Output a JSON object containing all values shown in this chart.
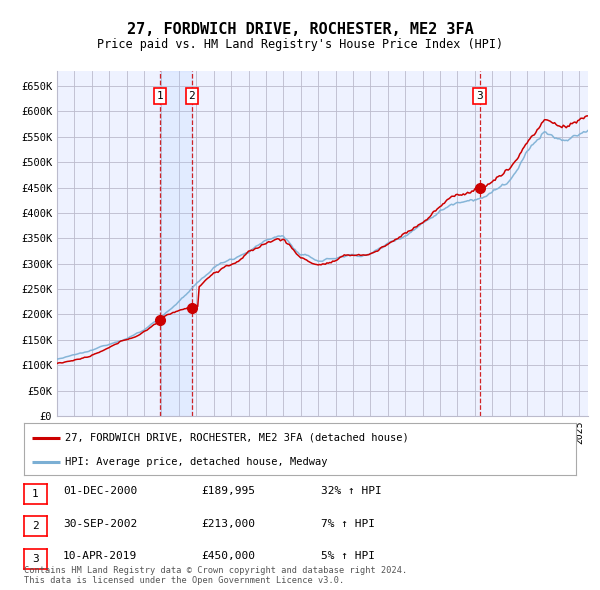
{
  "title": "27, FORDWICH DRIVE, ROCHESTER, ME2 3FA",
  "subtitle": "Price paid vs. HM Land Registry's House Price Index (HPI)",
  "ylabel_ticks": [
    "£0",
    "£50K",
    "£100K",
    "£150K",
    "£200K",
    "£250K",
    "£300K",
    "£350K",
    "£400K",
    "£450K",
    "£500K",
    "£550K",
    "£600K",
    "£650K"
  ],
  "ytick_values": [
    0,
    50000,
    100000,
    150000,
    200000,
    250000,
    300000,
    350000,
    400000,
    450000,
    500000,
    550000,
    600000,
    650000
  ],
  "ylim": [
    0,
    680000
  ],
  "red_line_color": "#cc0000",
  "blue_line_color": "#7bafd4",
  "plot_bg_color": "#eef2ff",
  "grid_color": "#bbbbcc",
  "purchase_times": [
    2000.917,
    2002.75,
    2019.274
  ],
  "purchase_prices": [
    189995,
    213000,
    450000
  ],
  "purchase_labels": [
    "1",
    "2",
    "3"
  ],
  "legend_label_red": "27, FORDWICH DRIVE, ROCHESTER, ME2 3FA (detached house)",
  "legend_label_blue": "HPI: Average price, detached house, Medway",
  "footnote": "Contains HM Land Registry data © Crown copyright and database right 2024.\nThis data is licensed under the Open Government Licence v3.0.",
  "table_rows": [
    [
      "1",
      "01-DEC-2000",
      "£189,995",
      "32% ↑ HPI"
    ],
    [
      "2",
      "30-SEP-2002",
      "£213,000",
      "7% ↑ HPI"
    ],
    [
      "3",
      "10-APR-2019",
      "£450,000",
      "5% ↑ HPI"
    ]
  ],
  "xstart": 1995.0,
  "xend": 2025.5
}
